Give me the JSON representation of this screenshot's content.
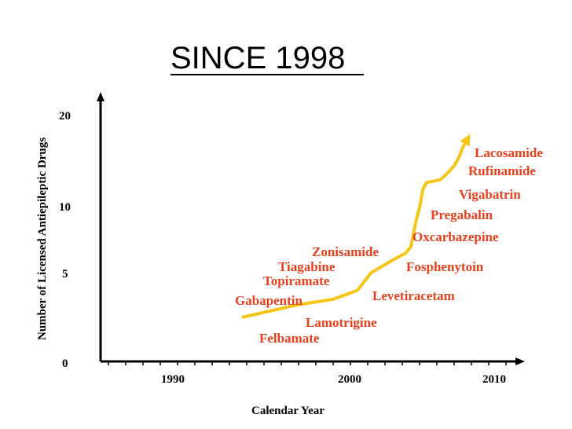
{
  "chart_data": {
    "type": "line",
    "title": "SINCE 1998",
    "xlabel": "Calendar Year",
    "ylabel": "Number of Licensed Antiepileptic Drugs",
    "x_ticks": [
      "1990",
      "2000",
      "2010"
    ],
    "y_ticks": [
      "0",
      "5",
      "10",
      "20"
    ],
    "series_color": "#f5c518",
    "label_color": "#e8401c",
    "line": [
      {
        "x": 1993.8,
        "y": 2.5
      },
      {
        "x": 1997.0,
        "y": 3.2
      },
      {
        "x": 1999.0,
        "y": 3.5
      },
      {
        "x": 2000.4,
        "y": 4.0
      },
      {
        "x": 2001.2,
        "y": 5.0
      },
      {
        "x": 2001.6,
        "y": 5.3
      },
      {
        "x": 2002.5,
        "y": 6.0
      },
      {
        "x": 2003.2,
        "y": 6.5
      },
      {
        "x": 2003.5,
        "y": 7.0
      },
      {
        "x": 2003.8,
        "y": 9.0
      },
      {
        "x": 2004.0,
        "y": 10.0
      },
      {
        "x": 2004.2,
        "y": 12.0
      },
      {
        "x": 2004.4,
        "y": 12.7
      },
      {
        "x": 2005.2,
        "y": 13.0
      },
      {
        "x": 2005.5,
        "y": 13.5
      },
      {
        "x": 2006.0,
        "y": 14.5
      },
      {
        "x": 2006.3,
        "y": 15.5
      },
      {
        "x": 2006.5,
        "y": 16.5
      },
      {
        "x": 2006.8,
        "y": 17.5
      }
    ],
    "annotations": [
      "Felbamate",
      "Gabapentin",
      "Lamotrigine",
      "Topiramate",
      "Tiagabine",
      "Levetiracetam",
      "Zonisamide",
      "Fosphenytoin",
      "Oxcarbazepine",
      "Pregabalin",
      "Vigabatrin",
      "Rufinamide",
      "Lacosamide"
    ]
  }
}
